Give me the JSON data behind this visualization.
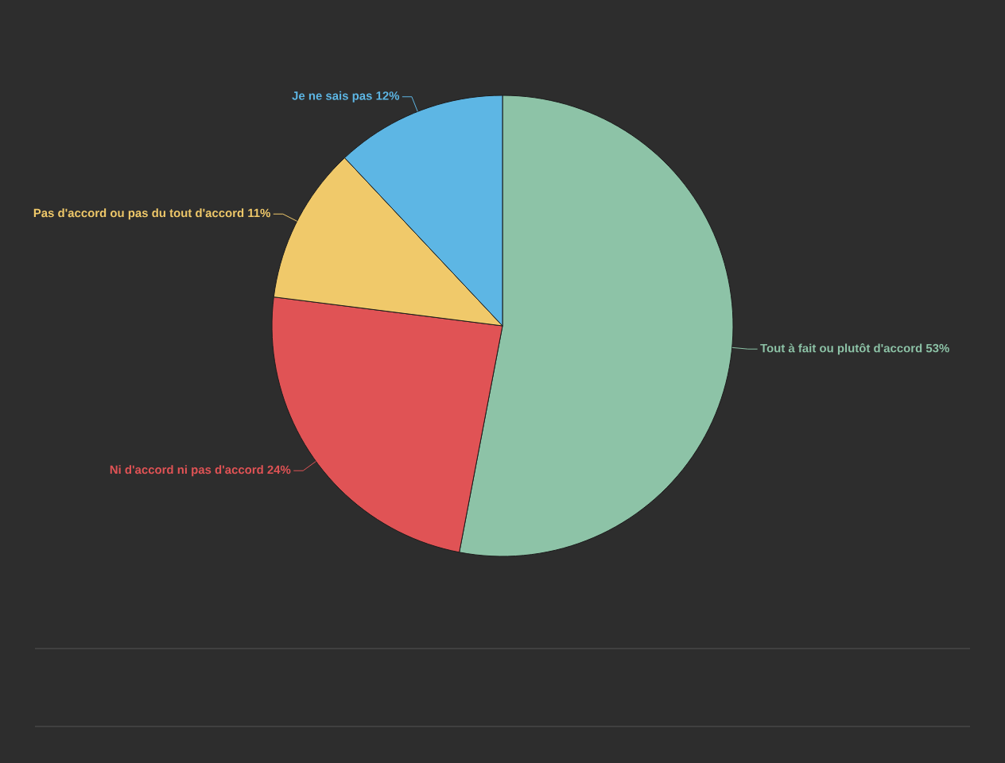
{
  "chart_data": {
    "type": "pie",
    "categories": [
      "Tout à fait ou plutôt d'accord",
      "Ni d'accord ni pas d'accord",
      "Pas d'accord ou pas du tout d'accord",
      "Je ne sais pas"
    ],
    "values": [
      53,
      24,
      11,
      12
    ],
    "colors": [
      "#8dc3a7",
      "#e05355",
      "#f0c96a",
      "#5db6e4"
    ],
    "value_labels": [
      "53%",
      "24%",
      "11%",
      "12%"
    ]
  }
}
